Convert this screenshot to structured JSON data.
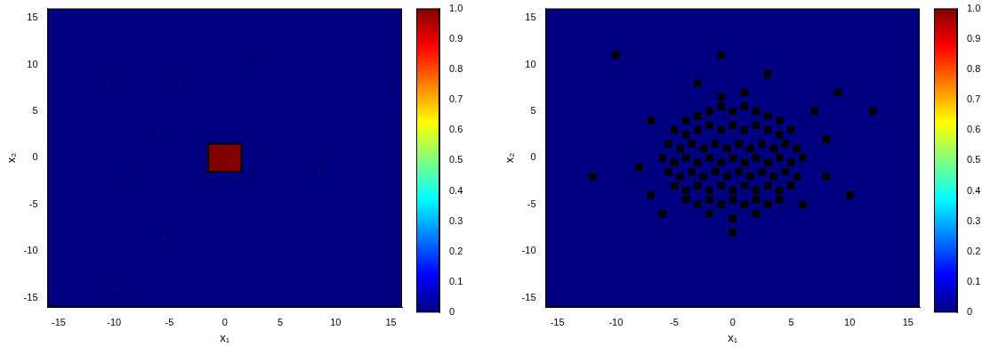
{
  "chart_data": [
    {
      "type": "heatmap",
      "x_label": "x₁",
      "y_label": "x₂",
      "xlim": [
        -16,
        16
      ],
      "ylim": [
        -16,
        16
      ],
      "xticks": [
        -15,
        -10,
        -5,
        0,
        5,
        10,
        15
      ],
      "yticks": [
        -15,
        -10,
        -5,
        0,
        5,
        10,
        15
      ],
      "background_value": 0,
      "patches": [
        {
          "x": [
            -1.5,
            1.5
          ],
          "y": [
            -1.5,
            1.5
          ],
          "value": 1
        }
      ],
      "points": {
        "color": "#1a1a2a",
        "marker": "square",
        "values": [
          [
            -10.5,
            8
          ],
          [
            -4,
            8
          ],
          [
            2,
            10.5
          ],
          [
            15,
            7.5
          ],
          [
            -6,
            3
          ],
          [
            -8,
            -2
          ],
          [
            -9.5,
            -2.5
          ],
          [
            -5.5,
            -8.5
          ],
          [
            9,
            0
          ],
          [
            8.5,
            -1.5
          ],
          [
            -10,
            -14
          ],
          [
            -9,
            -14.5
          ]
        ]
      },
      "colorbar": {
        "range": [
          0,
          1
        ],
        "ticks": [
          0,
          0.1,
          0.2,
          0.3,
          0.4,
          0.5,
          0.6,
          0.7,
          0.8,
          0.9,
          1
        ]
      }
    },
    {
      "type": "heatmap",
      "x_label": "x₁",
      "y_label": "x₂",
      "xlim": [
        -16,
        16
      ],
      "ylim": [
        -16,
        16
      ],
      "xticks": [
        -15,
        -10,
        -5,
        0,
        5,
        10,
        15
      ],
      "yticks": [
        -15,
        -10,
        -5,
        0,
        5,
        10,
        15
      ],
      "background_value": 0,
      "patches": [],
      "points": {
        "color": "#000000",
        "marker": "square",
        "values": [
          [
            -4,
            4
          ],
          [
            -3,
            4.5
          ],
          [
            -2,
            5
          ],
          [
            -1,
            5.5
          ],
          [
            0,
            5
          ],
          [
            1,
            5.5
          ],
          [
            2,
            5
          ],
          [
            3,
            4.5
          ],
          [
            4,
            4
          ],
          [
            -5,
            3
          ],
          [
            -4,
            2.5
          ],
          [
            -3,
            3
          ],
          [
            -2,
            3.5
          ],
          [
            -1,
            3
          ],
          [
            0,
            3.5
          ],
          [
            1,
            3
          ],
          [
            2,
            3.5
          ],
          [
            3,
            3
          ],
          [
            4,
            2.5
          ],
          [
            5,
            3
          ],
          [
            -5.5,
            1.5
          ],
          [
            -4.5,
            1
          ],
          [
            -3.5,
            1.5
          ],
          [
            -2.5,
            1
          ],
          [
            -1.5,
            1.5
          ],
          [
            -0.5,
            1
          ],
          [
            0.5,
            1.5
          ],
          [
            1.5,
            1
          ],
          [
            2.5,
            1.5
          ],
          [
            3.5,
            1
          ],
          [
            4.5,
            1.5
          ],
          [
            5.5,
            1
          ],
          [
            -6,
            0
          ],
          [
            -5,
            -0.5
          ],
          [
            -4,
            0
          ],
          [
            -3,
            -0.5
          ],
          [
            -2,
            0
          ],
          [
            -1,
            -0.5
          ],
          [
            0,
            0
          ],
          [
            1,
            -0.5
          ],
          [
            2,
            0
          ],
          [
            3,
            -0.5
          ],
          [
            4,
            0
          ],
          [
            5,
            -0.5
          ],
          [
            6,
            0
          ],
          [
            -5.5,
            -1.5
          ],
          [
            -4.5,
            -2
          ],
          [
            -3.5,
            -1.5
          ],
          [
            -2.5,
            -2
          ],
          [
            -1.5,
            -1.5
          ],
          [
            -0.5,
            -2
          ],
          [
            0.5,
            -1.5
          ],
          [
            1.5,
            -2
          ],
          [
            2.5,
            -1.5
          ],
          [
            3.5,
            -2
          ],
          [
            4.5,
            -1.5
          ],
          [
            5.5,
            -2
          ],
          [
            -5,
            -3
          ],
          [
            -4,
            -3.5
          ],
          [
            -3,
            -3
          ],
          [
            -2,
            -3.5
          ],
          [
            -1,
            -3
          ],
          [
            0,
            -3.5
          ],
          [
            1,
            -3
          ],
          [
            2,
            -3.5
          ],
          [
            3,
            -3
          ],
          [
            4,
            -3.5
          ],
          [
            5,
            -3
          ],
          [
            -4,
            -4.5
          ],
          [
            -3,
            -5
          ],
          [
            -2,
            -4.5
          ],
          [
            -1,
            -5
          ],
          [
            0,
            -4.5
          ],
          [
            1,
            -5
          ],
          [
            2,
            -4.5
          ],
          [
            3,
            -5
          ],
          [
            4,
            -4.5
          ],
          [
            -2,
            -6
          ],
          [
            0,
            -6.5
          ],
          [
            2,
            -6
          ],
          [
            -1,
            6.5
          ],
          [
            1,
            7
          ],
          [
            -7,
            4
          ],
          [
            7,
            5
          ],
          [
            -8,
            -1
          ],
          [
            8,
            -2
          ],
          [
            -6,
            -6
          ],
          [
            6,
            -5
          ],
          [
            -3,
            8
          ],
          [
            3,
            9
          ],
          [
            -12,
            -2
          ],
          [
            10,
            -4
          ],
          [
            -10,
            11
          ],
          [
            12,
            5
          ],
          [
            0,
            -8
          ],
          [
            -7,
            -4
          ],
          [
            8,
            2
          ],
          [
            -1,
            11
          ],
          [
            9,
            7
          ]
        ]
      },
      "colorbar": {
        "range": [
          0,
          1
        ],
        "ticks": [
          0,
          0.1,
          0.2,
          0.3,
          0.4,
          0.5,
          0.6,
          0.7,
          0.8,
          0.9,
          1
        ]
      }
    }
  ]
}
